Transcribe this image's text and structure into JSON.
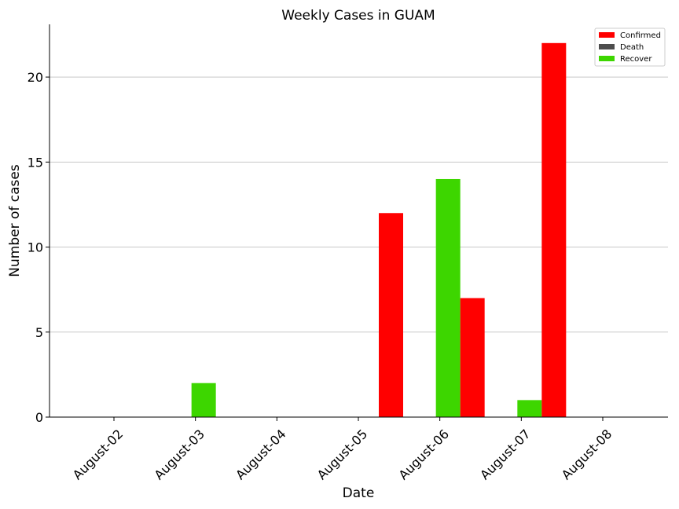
{
  "chart_data": {
    "type": "bar",
    "title": "Weekly Cases in GUAM",
    "xlabel": "Date",
    "ylabel": "Number of cases",
    "categories": [
      "August-02",
      "August-03",
      "August-04",
      "August-05",
      "August-06",
      "August-07",
      "August-08"
    ],
    "series": [
      {
        "name": "Recover",
        "color": "#3dd600",
        "values": [
          0,
          2,
          0,
          0,
          14,
          1,
          0
        ]
      },
      {
        "name": "Death",
        "color": "#4d4d4d",
        "values": [
          0,
          0,
          0,
          0,
          0,
          0,
          0
        ]
      },
      {
        "name": "Confirmed",
        "color": "#ff0000",
        "values": [
          0,
          0,
          0,
          12,
          7,
          22,
          0
        ]
      }
    ],
    "legend_order": [
      "Confirmed",
      "Death",
      "Recover"
    ],
    "ylim": [
      0,
      23.1
    ],
    "yticks": [
      0,
      5,
      10,
      15,
      20
    ],
    "grid": "horizontal",
    "legend_position": "top-right"
  }
}
